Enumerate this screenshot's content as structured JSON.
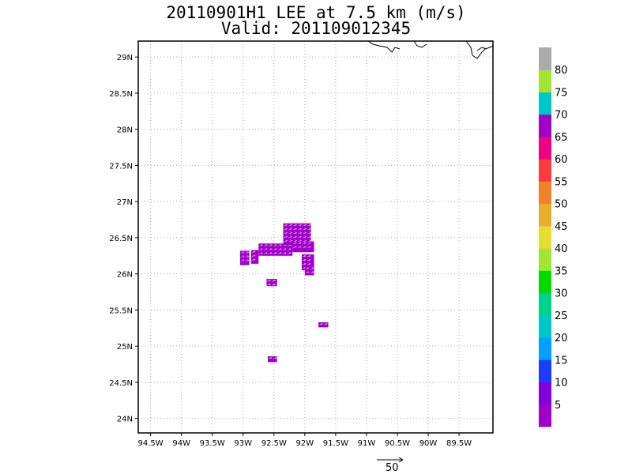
{
  "chart_data": {
    "type": "heatmap",
    "title": "20110901H1 LEE at 7.5 km (m/s)",
    "subtitle": "Valid: 201109012345",
    "xlabel": "",
    "ylabel": "",
    "x_ticks": [
      "94.5W",
      "94W",
      "93.5W",
      "93W",
      "92.5W",
      "92W",
      "91.5W",
      "91W",
      "90.5W",
      "90W",
      "89.5W"
    ],
    "x_tick_values": [
      -94.5,
      -94,
      -93.5,
      -93,
      -92.5,
      -92,
      -91.5,
      -91,
      -90.5,
      -90,
      -89.5
    ],
    "y_ticks": [
      "24N",
      "24.5N",
      "25N",
      "25.5N",
      "26N",
      "26.5N",
      "27N",
      "27.5N",
      "28N",
      "28.5N",
      "29N"
    ],
    "y_tick_values": [
      24,
      24.5,
      25,
      25.5,
      26,
      26.5,
      27,
      27.5,
      28,
      28.5,
      29
    ],
    "xlim": [
      -94.7,
      -88.95
    ],
    "ylim": [
      23.8,
      29.22
    ],
    "grid": true,
    "colorbar": {
      "labels": [
        "5",
        "10",
        "15",
        "20",
        "25",
        "30",
        "35",
        "40",
        "45",
        "50",
        "55",
        "60",
        "65",
        "70",
        "75",
        "80"
      ],
      "colors": [
        "#a000c8",
        "#8200dc",
        "#1e3cff",
        "#00a0ff",
        "#00c8c8",
        "#00d28c",
        "#00dc00",
        "#a0e632",
        "#e6dc32",
        "#e6af2d",
        "#f08228",
        "#fa3c3c",
        "#f00082",
        "#a000c8",
        "#00c8c8",
        "#a0e632",
        "#aaaaaa"
      ]
    },
    "wind_regions": [
      {
        "lon": [
          -93.05,
          -92.9
        ],
        "lat": [
          26.12,
          26.32
        ],
        "value": 3
      },
      {
        "lon": [
          -92.87,
          -92.75
        ],
        "lat": [
          26.14,
          26.33
        ],
        "value": 3
      },
      {
        "lon": [
          -92.75,
          -92.2
        ],
        "lat": [
          26.25,
          26.42
        ],
        "value": 3
      },
      {
        "lon": [
          -92.35,
          -91.9
        ],
        "lat": [
          26.4,
          26.7
        ],
        "value": 3
      },
      {
        "lon": [
          -92.2,
          -91.85
        ],
        "lat": [
          26.3,
          26.45
        ],
        "value": 3
      },
      {
        "lon": [
          -92.05,
          -91.85
        ],
        "lat": [
          26.05,
          26.27
        ],
        "value": 3
      },
      {
        "lon": [
          -92.0,
          -91.85
        ],
        "lat": [
          25.98,
          26.1
        ],
        "value": 3
      },
      {
        "lon": [
          -92.62,
          -92.45
        ],
        "lat": [
          25.83,
          25.93
        ],
        "value": 3
      },
      {
        "lon": [
          -91.78,
          -91.62
        ],
        "lat": [
          25.26,
          25.33
        ],
        "value": 3
      },
      {
        "lon": [
          -92.6,
          -92.45
        ],
        "lat": [
          24.78,
          24.86
        ],
        "value": 3
      }
    ],
    "reference_vector": {
      "label": "50",
      "units": "m/s"
    }
  }
}
